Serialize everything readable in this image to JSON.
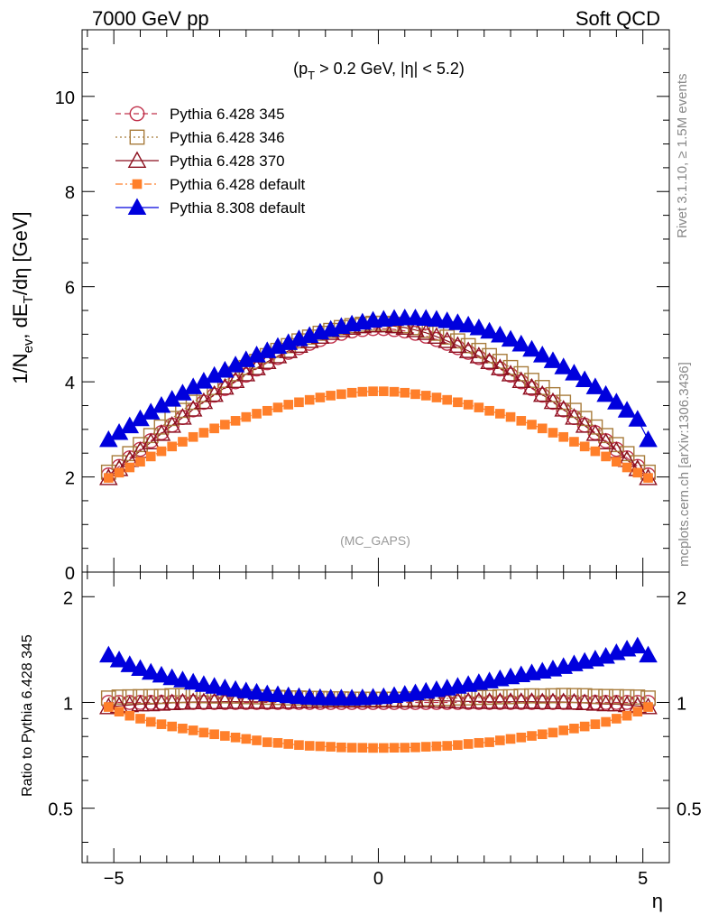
{
  "header": {
    "left": "7000 GeV pp",
    "right": "Soft QCD"
  },
  "cut_label": "(p_T > 0.2 GeV, |η| < 5.2)",
  "watermark": "(MC_GAPS)",
  "side_labels": {
    "rivet": "Rivet 3.1.10, ≥ 1.5M events",
    "mcplots": "mcplots.cern.ch [arXiv:1306.3436]"
  },
  "colors": {
    "p345": "#c0304a",
    "p346": "#a87c3c",
    "p370": "#8b0f1e",
    "p6def": "#ff7f2a",
    "p8def": "#0000dd"
  },
  "chart_data": [
    {
      "type": "scatter",
      "title": "",
      "ylabel": "1/N_ev, dE_T/dη [GeV]",
      "xlabel": "",
      "xlim": [
        -5.6,
        5.5
      ],
      "ylim": [
        0,
        11.4
      ],
      "yticks": [
        0,
        2,
        4,
        6,
        8,
        10
      ],
      "xticks": [
        -5,
        0,
        5
      ],
      "legend_position": "top-left",
      "x": [
        -5.1,
        -4.9,
        -4.7,
        -4.5,
        -4.3,
        -4.1,
        -3.9,
        -3.7,
        -3.5,
        -3.3,
        -3.1,
        -2.9,
        -2.7,
        -2.5,
        -2.3,
        -2.1,
        -1.9,
        -1.7,
        -1.5,
        -1.3,
        -1.1,
        -0.9,
        -0.7,
        -0.5,
        -0.3,
        -0.1,
        0.1,
        0.3,
        0.5,
        0.7,
        0.9,
        1.1,
        1.3,
        1.5,
        1.7,
        1.9,
        2.1,
        2.3,
        2.5,
        2.7,
        2.9,
        3.1,
        3.3,
        3.5,
        3.7,
        3.9,
        4.1,
        4.3,
        4.5,
        4.7,
        4.9,
        5.1
      ],
      "series": [
        {
          "name": "Pythia 6.428 345",
          "marker": "open-circle",
          "line": "dashed",
          "values": [
            2.04,
            2.22,
            2.4,
            2.58,
            2.76,
            2.93,
            3.09,
            3.25,
            3.41,
            3.57,
            3.72,
            3.86,
            4.0,
            4.14,
            4.27,
            4.4,
            4.51,
            4.62,
            4.72,
            4.81,
            4.89,
            4.96,
            5.02,
            5.07,
            5.1,
            5.12,
            5.12,
            5.1,
            5.07,
            5.02,
            4.96,
            4.89,
            4.81,
            4.72,
            4.62,
            4.51,
            4.4,
            4.27,
            4.14,
            4.0,
            3.86,
            3.72,
            3.57,
            3.41,
            3.25,
            3.09,
            2.93,
            2.76,
            2.58,
            2.4,
            2.22,
            2.04
          ]
        },
        {
          "name": "Pythia 6.428 346",
          "marker": "open-square",
          "line": "dotted",
          "values": [
            2.1,
            2.3,
            2.49,
            2.68,
            2.87,
            3.05,
            3.23,
            3.4,
            3.57,
            3.73,
            3.88,
            4.03,
            4.17,
            4.3,
            4.43,
            4.55,
            4.66,
            4.76,
            4.86,
            4.94,
            5.02,
            5.08,
            5.14,
            5.18,
            5.21,
            5.23,
            5.23,
            5.21,
            5.18,
            5.14,
            5.08,
            5.02,
            4.94,
            4.86,
            4.76,
            4.66,
            4.55,
            4.43,
            4.3,
            4.17,
            4.03,
            3.88,
            3.73,
            3.57,
            3.4,
            3.23,
            3.05,
            2.87,
            2.68,
            2.49,
            2.3,
            2.1
          ]
        },
        {
          "name": "Pythia 6.428 370",
          "marker": "open-triangle",
          "line": "solid",
          "values": [
            1.98,
            2.17,
            2.36,
            2.55,
            2.73,
            2.91,
            3.08,
            3.25,
            3.42,
            3.58,
            3.73,
            3.88,
            4.02,
            4.16,
            4.29,
            4.42,
            4.54,
            4.65,
            4.76,
            4.86,
            4.95,
            5.03,
            5.09,
            5.14,
            5.17,
            5.19,
            5.19,
            5.17,
            5.14,
            5.09,
            5.03,
            4.95,
            4.86,
            4.76,
            4.65,
            4.54,
            4.42,
            4.29,
            4.16,
            4.02,
            3.88,
            3.73,
            3.58,
            3.42,
            3.25,
            3.08,
            2.91,
            2.73,
            2.55,
            2.36,
            2.17,
            1.98
          ]
        },
        {
          "name": "Pythia 6.428 default",
          "marker": "filled-square",
          "line": "dash-dot",
          "values": [
            1.98,
            2.09,
            2.2,
            2.32,
            2.43,
            2.54,
            2.64,
            2.74,
            2.84,
            2.93,
            3.02,
            3.1,
            3.18,
            3.26,
            3.33,
            3.39,
            3.46,
            3.52,
            3.57,
            3.62,
            3.67,
            3.71,
            3.74,
            3.77,
            3.79,
            3.8,
            3.8,
            3.79,
            3.77,
            3.74,
            3.71,
            3.67,
            3.62,
            3.57,
            3.52,
            3.46,
            3.39,
            3.33,
            3.26,
            3.18,
            3.1,
            3.02,
            2.93,
            2.84,
            2.74,
            2.64,
            2.54,
            2.43,
            2.32,
            2.2,
            2.09,
            1.98
          ]
        },
        {
          "name": "Pythia 8.308 default",
          "marker": "filled-triangle",
          "line": "solid",
          "values": [
            2.78,
            2.93,
            3.07,
            3.22,
            3.36,
            3.5,
            3.63,
            3.76,
            3.89,
            4.01,
            4.13,
            4.24,
            4.35,
            4.46,
            4.56,
            4.65,
            4.74,
            4.82,
            4.9,
            4.97,
            5.04,
            5.1,
            5.16,
            5.21,
            5.25,
            5.29,
            5.31,
            5.33,
            5.34,
            5.34,
            5.33,
            5.31,
            5.28,
            5.24,
            5.19,
            5.13,
            5.06,
            4.98,
            4.89,
            4.79,
            4.68,
            4.56,
            4.44,
            4.31,
            4.18,
            4.04,
            3.89,
            3.73,
            3.57,
            3.4,
            3.21,
            2.78
          ]
        }
      ]
    },
    {
      "type": "scatter",
      "title": "",
      "ylabel": "Ratio to Pythia 6.428 345",
      "xlabel": "η",
      "xlim": [
        -5.6,
        5.5
      ],
      "ylim": [
        0.35,
        2.35
      ],
      "yticks": [
        0.5,
        1,
        2
      ],
      "ytick_labels": [
        "0.5",
        "1",
        "2"
      ],
      "xticks": [
        -5,
        0,
        5
      ],
      "xtick_labels": [
        "−5",
        "0",
        "5"
      ],
      "reference_line": 1
    }
  ]
}
